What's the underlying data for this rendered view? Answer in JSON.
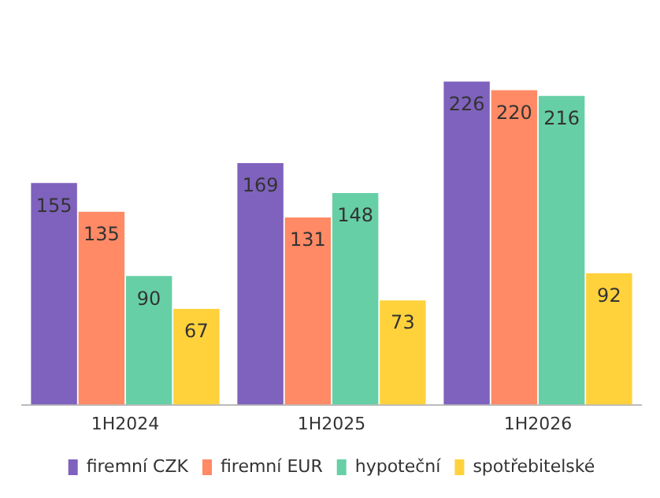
{
  "chart_data": {
    "type": "bar",
    "categories": [
      "1H2024",
      "1H2025",
      "1H2026"
    ],
    "series": [
      {
        "name": "firemní CZK",
        "color": "#7f62bd",
        "values": [
          155,
          169,
          226
        ]
      },
      {
        "name": "firemní EUR",
        "color": "#ff8a65",
        "values": [
          135,
          131,
          220
        ]
      },
      {
        "name": "hypoteční",
        "color": "#66cfa6",
        "values": [
          90,
          148,
          216
        ]
      },
      {
        "name": "spotřebitelské",
        "color": "#ffd23c",
        "values": [
          67,
          73,
          92
        ]
      }
    ],
    "data_labels": true,
    "grid": false,
    "legend": "bottom"
  }
}
